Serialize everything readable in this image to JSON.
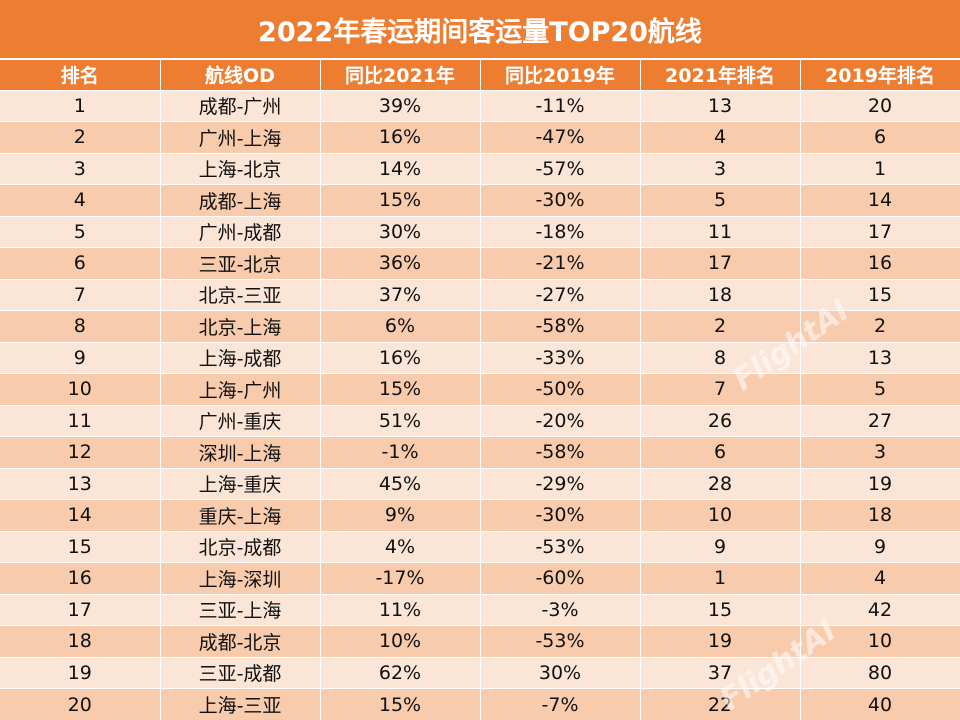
{
  "chart_data": {
    "type": "table",
    "title": "2022年春运期间客运量TOP20航线",
    "columns": [
      "排名",
      "航线OD",
      "同比2021年",
      "同比2019年",
      "2021年排名",
      "2019年排名"
    ],
    "rows": [
      [
        "1",
        "成都-广州",
        "39%",
        "-11%",
        "13",
        "20"
      ],
      [
        "2",
        "广州-上海",
        "16%",
        "-47%",
        "4",
        "6"
      ],
      [
        "3",
        "上海-北京",
        "14%",
        "-57%",
        "3",
        "1"
      ],
      [
        "4",
        "成都-上海",
        "15%",
        "-30%",
        "5",
        "14"
      ],
      [
        "5",
        "广州-成都",
        "30%",
        "-18%",
        "11",
        "17"
      ],
      [
        "6",
        "三亚-北京",
        "36%",
        "-21%",
        "17",
        "16"
      ],
      [
        "7",
        "北京-三亚",
        "37%",
        "-27%",
        "18",
        "15"
      ],
      [
        "8",
        "北京-上海",
        "6%",
        "-58%",
        "2",
        "2"
      ],
      [
        "9",
        "上海-成都",
        "16%",
        "-33%",
        "8",
        "13"
      ],
      [
        "10",
        "上海-广州",
        "15%",
        "-50%",
        "7",
        "5"
      ],
      [
        "11",
        "广州-重庆",
        "51%",
        "-20%",
        "26",
        "27"
      ],
      [
        "12",
        "深圳-上海",
        "-1%",
        "-58%",
        "6",
        "3"
      ],
      [
        "13",
        "上海-重庆",
        "45%",
        "-29%",
        "28",
        "19"
      ],
      [
        "14",
        "重庆-上海",
        "9%",
        "-30%",
        "10",
        "18"
      ],
      [
        "15",
        "北京-成都",
        "4%",
        "-53%",
        "9",
        "9"
      ],
      [
        "16",
        "上海-深圳",
        "-17%",
        "-60%",
        "1",
        "4"
      ],
      [
        "17",
        "三亚-上海",
        "11%",
        "-3%",
        "15",
        "42"
      ],
      [
        "18",
        "成都-北京",
        "10%",
        "-53%",
        "19",
        "10"
      ],
      [
        "19",
        "三亚-成都",
        "62%",
        "30%",
        "37",
        "80"
      ],
      [
        "20",
        "上海-三亚",
        "15%",
        "-7%",
        "22",
        "40"
      ]
    ],
    "header_color": "#ED7D31",
    "row_colors": [
      "#FBE5D6",
      "#F8CBAD"
    ]
  },
  "watermark": "FlightAI"
}
